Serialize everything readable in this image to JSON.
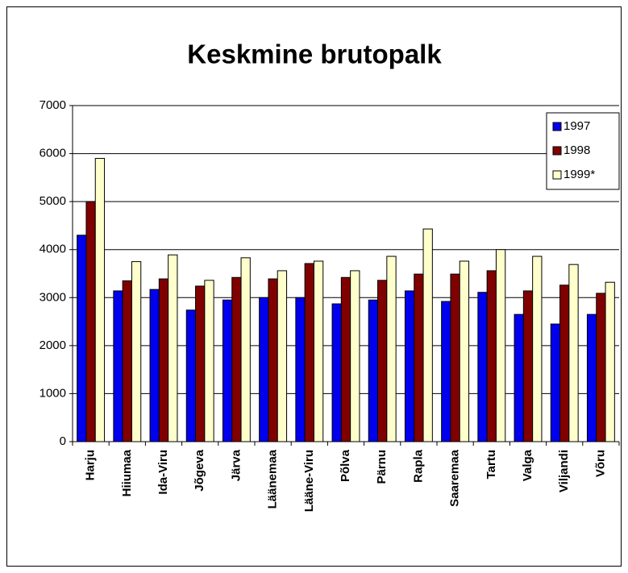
{
  "chart_data": {
    "type": "bar",
    "title": "Keskmine brutopalk",
    "categories": [
      "Harju",
      "Hiiumaa",
      "Ida-Viru",
      "Jõgeva",
      "Järva",
      "Läänemaa",
      "Lääne-Viru",
      "Põlva",
      "Pärnu",
      "Rapla",
      "Saaremaa",
      "Tartu",
      "Valga",
      "Viljandi",
      "Võru"
    ],
    "series": [
      {
        "name": "1997",
        "color": "#0000ee",
        "values": [
          4300,
          3140,
          3170,
          2740,
          2950,
          3000,
          3000,
          2870,
          2950,
          3140,
          2920,
          3110,
          2650,
          2450,
          2650
        ]
      },
      {
        "name": "1998",
        "color": "#800000",
        "values": [
          5000,
          3350,
          3390,
          3240,
          3420,
          3390,
          3710,
          3420,
          3360,
          3490,
          3490,
          3560,
          3140,
          3260,
          3090
        ]
      },
      {
        "name": "1999*",
        "color": "#ffffcc",
        "values": [
          5900,
          3750,
          3890,
          3360,
          3830,
          3560,
          3760,
          3560,
          3860,
          4430,
          3760,
          4000,
          3860,
          3690,
          3320
        ]
      }
    ],
    "ylim": [
      0,
      7000
    ],
    "yticks": [
      0,
      1000,
      2000,
      3000,
      4000,
      5000,
      6000,
      7000
    ],
    "grid": true,
    "legend": "top-right"
  }
}
